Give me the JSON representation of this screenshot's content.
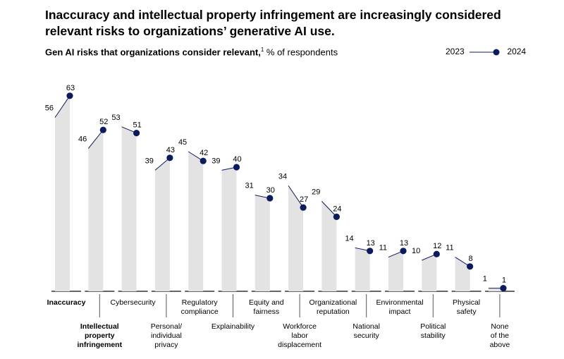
{
  "title": "Inaccuracy and intellectual property infringement are increasingly considered relevant risks to organizations’ generative AI use.",
  "subtitle": {
    "bold": "Gen AI risks that organizations consider relevant,",
    "footnote": "1",
    "rest": " % of respondents"
  },
  "legend": {
    "y2023": "2023",
    "y2024": "2024"
  },
  "colors": {
    "bar": "#e3e3e3",
    "dot": "#0c1b5c",
    "line": "#0c1b5c",
    "axis": "#333333",
    "tick": "#555555"
  },
  "chart_data": {
    "type": "bar",
    "title": "Gen AI risks that organizations consider relevant, % of respondents",
    "ylim": [
      0,
      70
    ],
    "categories": [
      [
        "Inaccuracy"
      ],
      [
        "Intellectual",
        "property",
        "infringement"
      ],
      [
        "Cybersecurity"
      ],
      [
        "Personal/",
        "individual",
        "privacy"
      ],
      [
        "Regulatory",
        "compliance"
      ],
      [
        "Explainability"
      ],
      [
        "Equity and",
        "fairness"
      ],
      [
        "Workforce",
        "labor",
        "displacement"
      ],
      [
        "Organizational",
        "reputation"
      ],
      [
        "National",
        "security"
      ],
      [
        "Environmental",
        "impact"
      ],
      [
        "Political",
        "stability"
      ],
      [
        "Physical",
        "safety"
      ],
      [
        "None",
        "of the",
        "above"
      ]
    ],
    "bold_categories": [
      0,
      1
    ],
    "series": [
      {
        "name": "2023",
        "values": [
          56,
          46,
          53,
          39,
          45,
          39,
          31,
          34,
          29,
          14,
          11,
          10,
          11,
          1
        ]
      },
      {
        "name": "2024",
        "values": [
          63,
          52,
          51,
          43,
          42,
          40,
          30,
          27,
          24,
          13,
          13,
          12,
          8,
          1
        ]
      }
    ]
  }
}
